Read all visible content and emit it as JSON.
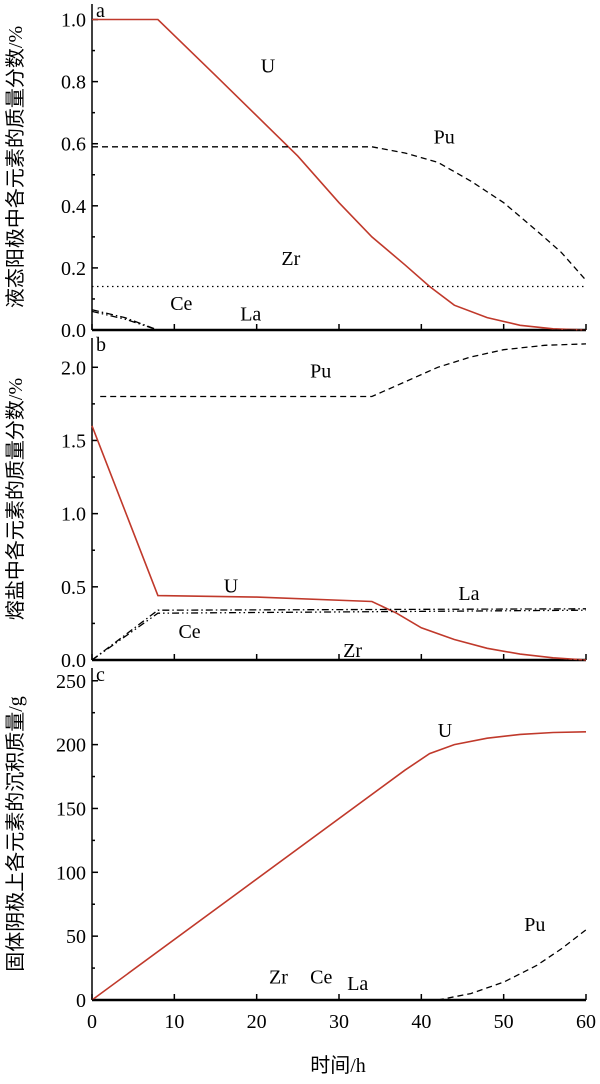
{
  "figure": {
    "xlabel": "时间/h"
  },
  "chart_data": [
    {
      "id": "a",
      "type": "line",
      "panel_letter": "a",
      "ylabel": "液态阳极中各元素的质量分数/%",
      "xlim": [
        0,
        60
      ],
      "ylim": [
        0,
        1.05
      ],
      "yticks": [
        "0.0",
        "0.2",
        "0.4",
        "0.6",
        "0.8",
        "1.0"
      ],
      "series": [
        {
          "name": "U",
          "color": "#c0392b",
          "dash": "solid",
          "points": [
            [
              0,
              1.0
            ],
            [
              8,
              1.0
            ],
            [
              15,
              0.82
            ],
            [
              25,
              0.56
            ],
            [
              30,
              0.41
            ],
            [
              34,
              0.3
            ],
            [
              38,
              0.21
            ],
            [
              41,
              0.14
            ],
            [
              44,
              0.08
            ],
            [
              48,
              0.04
            ],
            [
              52,
              0.015
            ],
            [
              56,
              0.004
            ],
            [
              60,
              0.0
            ]
          ]
        },
        {
          "name": "Pu",
          "color": "#000000",
          "dash": "dashed",
          "points": [
            [
              0,
              0.59
            ],
            [
              34,
              0.59
            ],
            [
              38,
              0.57
            ],
            [
              42,
              0.54
            ],
            [
              46,
              0.48
            ],
            [
              50,
              0.41
            ],
            [
              54,
              0.32
            ],
            [
              57,
              0.25
            ],
            [
              60,
              0.16
            ]
          ]
        },
        {
          "name": "Zr",
          "color": "#000000",
          "dash": "dotted",
          "points": [
            [
              0,
              0.14
            ],
            [
              60,
              0.14
            ]
          ]
        },
        {
          "name": "Ce",
          "color": "#000000",
          "dash": "dashdot",
          "points": [
            [
              0,
              0.065
            ],
            [
              4,
              0.04
            ],
            [
              8,
              0.0
            ],
            [
              60,
              0.0
            ]
          ]
        },
        {
          "name": "La",
          "color": "#000000",
          "dash": "dashdotdot",
          "points": [
            [
              0,
              0.06
            ],
            [
              4,
              0.035
            ],
            [
              8,
              0.0
            ],
            [
              60,
              0.0
            ]
          ]
        }
      ],
      "labels": [
        {
          "text": "U",
          "x": 20.5,
          "y": 0.83
        },
        {
          "text": "Pu",
          "x": 41.5,
          "y": 0.6
        },
        {
          "text": "Zr",
          "x": 23,
          "y": 0.21
        },
        {
          "text": "Ce",
          "x": 9.5,
          "y": 0.065
        },
        {
          "text": "La",
          "x": 18,
          "y": 0.03
        }
      ]
    },
    {
      "id": "b",
      "type": "line",
      "panel_letter": "b",
      "ylabel": "熔盐中各元素的质量分数/%",
      "xlim": [
        0,
        60
      ],
      "ylim": [
        0,
        2.2
      ],
      "yticks": [
        "0.0",
        "0.5",
        "1.0",
        "1.5",
        "2.0"
      ],
      "series": [
        {
          "name": "U",
          "color": "#c0392b",
          "dash": "solid",
          "points": [
            [
              0,
              1.6
            ],
            [
              8,
              0.44
            ],
            [
              20,
              0.43
            ],
            [
              34,
              0.4
            ],
            [
              37,
              0.32
            ],
            [
              40,
              0.22
            ],
            [
              44,
              0.14
            ],
            [
              48,
              0.08
            ],
            [
              52,
              0.04
            ],
            [
              56,
              0.015
            ],
            [
              60,
              0.0
            ]
          ]
        },
        {
          "name": "Pu",
          "color": "#000000",
          "dash": "dashed",
          "points": [
            [
              1,
              1.8
            ],
            [
              34,
              1.8
            ],
            [
              38,
              1.9
            ],
            [
              42,
              2.0
            ],
            [
              46,
              2.07
            ],
            [
              50,
              2.12
            ],
            [
              55,
              2.15
            ],
            [
              60,
              2.16
            ]
          ]
        },
        {
          "name": "La",
          "color": "#000000",
          "dash": "dashdot",
          "points": [
            [
              0,
              0.0
            ],
            [
              8,
              0.34
            ],
            [
              60,
              0.35
            ]
          ]
        },
        {
          "name": "Ce",
          "color": "#000000",
          "dash": "dashdotdot",
          "points": [
            [
              0,
              0.0
            ],
            [
              8,
              0.32
            ],
            [
              60,
              0.34
            ]
          ]
        },
        {
          "name": "Zr",
          "color": "#000000",
          "dash": "dotted",
          "points": [
            [
              0,
              0.0
            ],
            [
              60,
              0.0
            ]
          ]
        }
      ],
      "labels": [
        {
          "text": "Pu",
          "x": 26.5,
          "y": 1.93
        },
        {
          "text": "U",
          "x": 16,
          "y": 0.46
        },
        {
          "text": "La",
          "x": 44.5,
          "y": 0.41
        },
        {
          "text": "Ce",
          "x": 10.5,
          "y": 0.15
        },
        {
          "text": "Zr",
          "x": 30.5,
          "y": 0.02
        }
      ]
    },
    {
      "id": "c",
      "type": "line",
      "panel_letter": "c",
      "ylabel": "固体阴极上各元素的沉积质量/g",
      "xlim": [
        0,
        60
      ],
      "ylim": [
        0,
        260
      ],
      "yticks": [
        "0",
        "50",
        "100",
        "150",
        "200",
        "250"
      ],
      "xticks": [
        "0",
        "10",
        "20",
        "30",
        "40",
        "50",
        "60"
      ],
      "series": [
        {
          "name": "U",
          "color": "#c0392b",
          "dash": "solid",
          "points": [
            [
              0,
              0
            ],
            [
              38,
              180
            ],
            [
              41,
              193
            ],
            [
              44,
              200
            ],
            [
              48,
              205
            ],
            [
              52,
              208
            ],
            [
              56,
              209.5
            ],
            [
              60,
              210
            ]
          ]
        },
        {
          "name": "Pu",
          "color": "#000000",
          "dash": "dashed",
          "points": [
            [
              42,
              0
            ],
            [
              46,
              5
            ],
            [
              50,
              14
            ],
            [
              54,
              27
            ],
            [
              57,
              40
            ],
            [
              60,
              55
            ]
          ]
        },
        {
          "name": "Zr",
          "color": "#000000",
          "dash": "dotted",
          "points": [
            [
              0,
              0
            ],
            [
              60,
              0
            ]
          ]
        },
        {
          "name": "Ce",
          "color": "#000000",
          "dash": "dashdot",
          "points": [
            [
              0,
              0
            ],
            [
              60,
              0
            ]
          ]
        },
        {
          "name": "La",
          "color": "#000000",
          "dash": "dashdotdot",
          "points": [
            [
              0,
              0
            ],
            [
              60,
              0
            ]
          ]
        }
      ],
      "labels": [
        {
          "text": "U",
          "x": 42,
          "y": 206
        },
        {
          "text": "Pu",
          "x": 52.5,
          "y": 54
        },
        {
          "text": "Zr",
          "x": 21.5,
          "y": 13
        },
        {
          "text": "Ce",
          "x": 26.5,
          "y": 13
        },
        {
          "text": "La",
          "x": 31,
          "y": 8
        }
      ]
    }
  ]
}
